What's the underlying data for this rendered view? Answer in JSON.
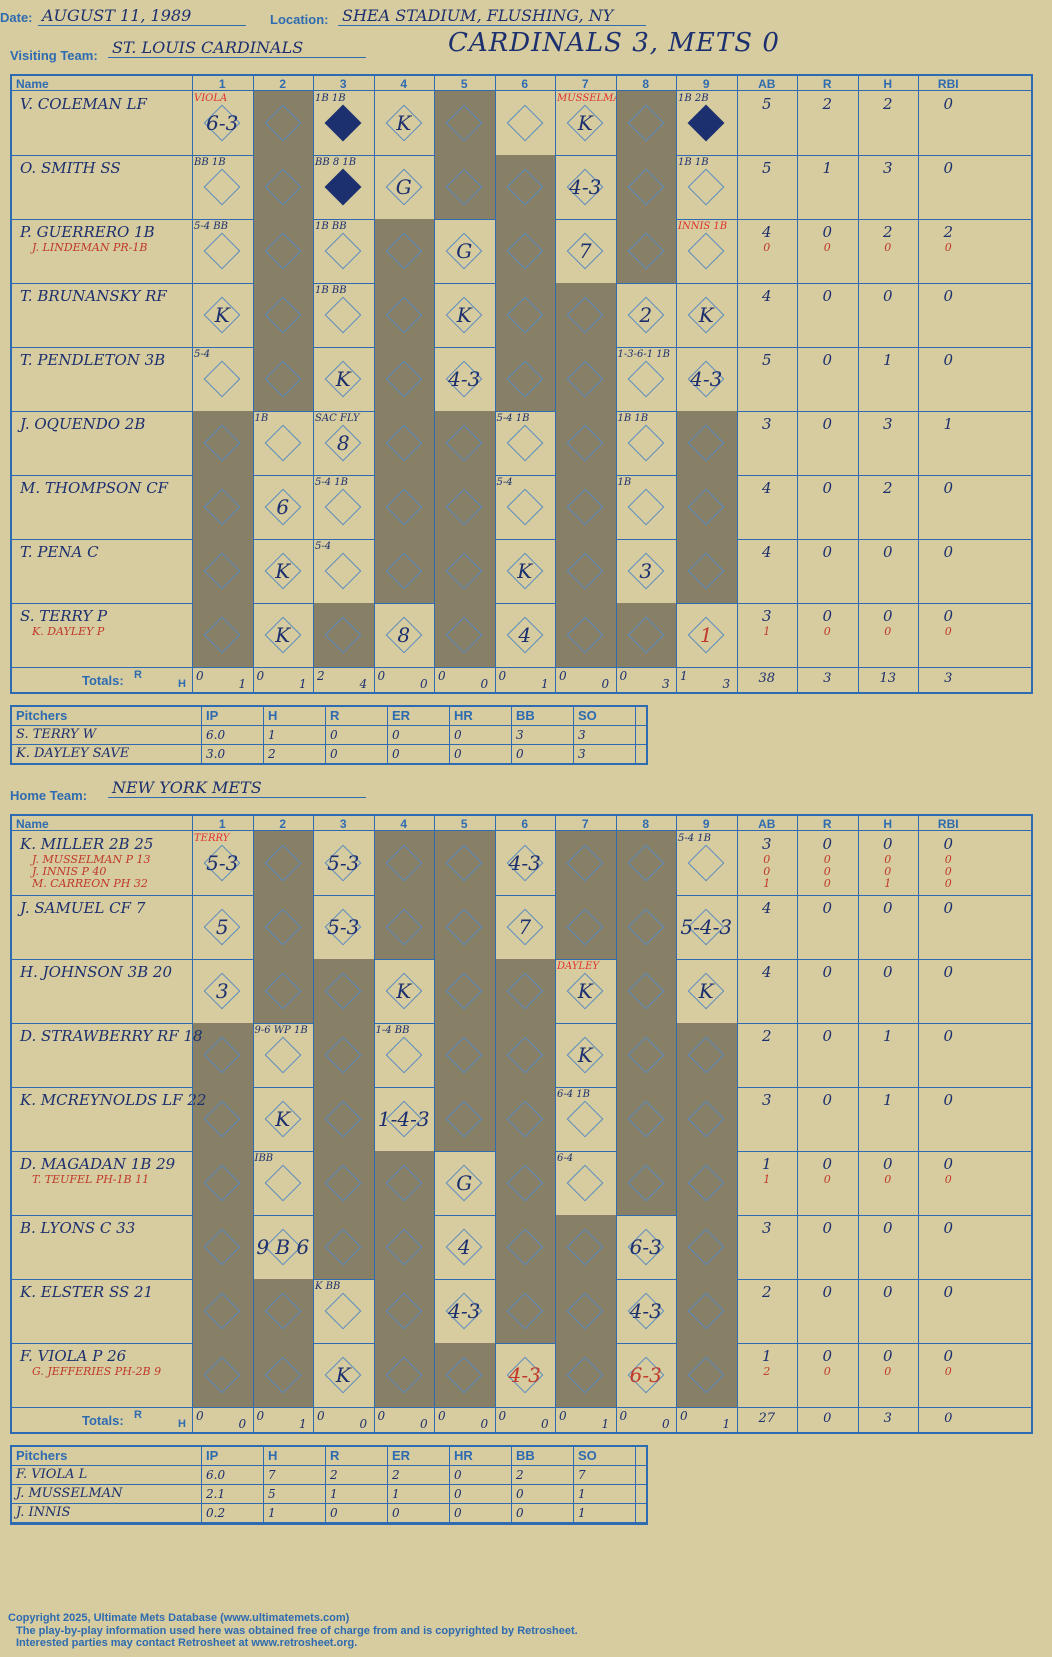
{
  "header": {
    "date_label": "Date:",
    "date": "AUGUST 11, 1989",
    "location_label": "Location:",
    "location": "SHEA STADIUM, FLUSHING, NY",
    "visiting_label": "Visiting Team:",
    "visiting_team": "ST. LOUIS CARDINALS",
    "score_title": "CARDINALS 3, METS 0",
    "home_label": "Home Team:",
    "home_team": "NEW YORK METS"
  },
  "columns": {
    "name": "Name",
    "innings": [
      "1",
      "2",
      "3",
      "4",
      "5",
      "6",
      "7",
      "8",
      "9"
    ],
    "stats": [
      "AB",
      "R",
      "H",
      "RBI"
    ],
    "totals_label": "Totals:",
    "r": "R",
    "h": "H"
  },
  "watermark": "Ultimate Mets Database",
  "visitors": {
    "rows": [
      {
        "name": "V. COLEMAN LF",
        "subs": [],
        "stats": [
          "5",
          "2",
          "2",
          "0"
        ],
        "stats2": [],
        "cells": {
          "1": "6-3",
          "4": "K",
          "7": "K"
        },
        "notes": {
          "1": "VIOLA",
          "7": "MUSSELMAN",
          "3": "1B 1B",
          "9": "1B 2B"
        },
        "filled": [
          "3",
          "9"
        ]
      },
      {
        "name": "O. SMITH SS",
        "subs": [],
        "stats": [
          "5",
          "1",
          "3",
          "0"
        ],
        "stats2": [],
        "cells": {
          "4": "G",
          "7": "4-3"
        },
        "notes": {
          "1": "BB 1B",
          "3": "BB 8 1B",
          "9": "1B 1B"
        },
        "filled": [
          "3"
        ]
      },
      {
        "name": "P. GUERRERO 1B",
        "subs": [
          "J. LINDEMAN PR-1B"
        ],
        "stats": [
          "4",
          "0",
          "2",
          "2"
        ],
        "stats2": [
          "0",
          "0",
          "0",
          "0"
        ],
        "cells": {
          "5": "G",
          "7": "7"
        },
        "notes": {
          "1": "5-4 BB",
          "3": "1B BB",
          "9": "INNIS 1B"
        },
        "filled": []
      },
      {
        "name": "T. BRUNANSKY RF",
        "subs": [],
        "stats": [
          "4",
          "0",
          "0",
          "0"
        ],
        "stats2": [],
        "cells": {
          "1": "K",
          "5": "K",
          "8": "2",
          "9": "K"
        },
        "notes": {
          "3": "1B BB"
        },
        "filled": []
      },
      {
        "name": "T. PENDLETON 3B",
        "subs": [],
        "stats": [
          "5",
          "0",
          "1",
          "0"
        ],
        "stats2": [],
        "cells": {
          "3": "K",
          "5": "4-3",
          "9": "4-3"
        },
        "notes": {
          "1": "5-4",
          "8": "1-3-6-1 1B"
        },
        "filled": []
      },
      {
        "name": "J. OQUENDO 2B",
        "subs": [],
        "stats": [
          "3",
          "0",
          "3",
          "1"
        ],
        "stats2": [],
        "cells": {
          "3": "8"
        },
        "notes": {
          "2": "1B",
          "3": "SAC FLY",
          "6": "5-4 1B",
          "8": "1B 1B"
        },
        "filled": []
      },
      {
        "name": "M. THOMPSON CF",
        "subs": [],
        "stats": [
          "4",
          "0",
          "2",
          "0"
        ],
        "stats2": [],
        "cells": {
          "2": "6"
        },
        "notes": {
          "3": "5-4 1B",
          "6": "5-4",
          "8": "1B"
        },
        "filled": []
      },
      {
        "name": "T. PENA C",
        "subs": [],
        "stats": [
          "4",
          "0",
          "0",
          "0"
        ],
        "stats2": [],
        "cells": {
          "2": "K",
          "6": "K",
          "8": "3"
        },
        "notes": {
          "3": "5-4"
        },
        "filled": []
      },
      {
        "name": "S. TERRY P",
        "subs": [
          "K. DAYLEY P"
        ],
        "stats": [
          "3",
          "0",
          "0",
          "0"
        ],
        "stats2": [
          "1",
          "0",
          "0",
          "0"
        ],
        "cells": {
          "2": "K",
          "4": "8",
          "6": "4"
        },
        "redcells": {
          "9": "1"
        },
        "notes": {},
        "filled": []
      }
    ],
    "shade": [
      [
        2,
        5,
        8
      ],
      [
        2,
        5,
        6,
        8
      ],
      [
        2,
        4,
        6,
        8
      ],
      [
        2,
        4,
        6,
        7
      ],
      [
        2,
        4,
        6,
        7
      ],
      [
        1,
        4,
        5,
        7,
        9
      ],
      [
        1,
        4,
        5,
        7,
        9
      ],
      [
        1,
        4,
        5,
        7,
        9
      ],
      [
        1,
        3,
        5,
        7,
        8
      ]
    ],
    "totals": [
      [
        "0",
        "1"
      ],
      [
        "0",
        "1"
      ],
      [
        "2",
        "4"
      ],
      [
        "0",
        "0"
      ],
      [
        "0",
        "0"
      ],
      [
        "0",
        "1"
      ],
      [
        "0",
        "0"
      ],
      [
        "0",
        "3"
      ],
      [
        "1",
        "3"
      ]
    ],
    "stat_totals": [
      "38",
      "3",
      "13",
      "3"
    ]
  },
  "visitor_pitchers": {
    "head": [
      "Pitchers",
      "IP",
      "H",
      "R",
      "ER",
      "HR",
      "BB",
      "SO"
    ],
    "rows": [
      [
        "S. TERRY  W",
        "6.0",
        "1",
        "0",
        "0",
        "0",
        "3",
        "3"
      ],
      [
        "K. DAYLEY  SAVE",
        "3.0",
        "2",
        "0",
        "0",
        "0",
        "0",
        "3"
      ]
    ]
  },
  "home": {
    "rows": [
      {
        "name": "K. MILLER 2B  25",
        "subs": [
          "J. MUSSELMAN P 13",
          "J. INNIS P 40",
          "M. CARREON PH 32"
        ],
        "stats": [
          "3",
          "0",
          "0",
          "0"
        ],
        "stats2": [
          "0",
          "0",
          "0",
          "0",
          "0",
          "0",
          "0",
          "0",
          "1",
          "0",
          "1",
          "0"
        ],
        "cells": {
          "1": "5-3",
          "3": "5-3",
          "6": "4-3"
        },
        "notes": {
          "1": "TERRY",
          "9": "5-4 1B"
        },
        "filled": []
      },
      {
        "name": "J. SAMUEL CF  7",
        "subs": [],
        "stats": [
          "4",
          "0",
          "0",
          "0"
        ],
        "stats2": [],
        "cells": {
          "1": "5",
          "3": "5-3",
          "6": "7",
          "9": "5-4-3"
        },
        "notes": {},
        "filled": []
      },
      {
        "name": "H. JOHNSON 3B  20",
        "subs": [],
        "stats": [
          "4",
          "0",
          "0",
          "0"
        ],
        "stats2": [],
        "cells": {
          "1": "3",
          "4": "K",
          "7": "K",
          "9": "K"
        },
        "notes": {
          "7": "DAYLEY"
        },
        "filled": []
      },
      {
        "name": "D. STRAWBERRY RF  18",
        "subs": [],
        "stats": [
          "2",
          "0",
          "1",
          "0"
        ],
        "stats2": [],
        "cells": {
          "7": "K"
        },
        "notes": {
          "2": "9-6 WP 1B",
          "4": "1-4 BB"
        },
        "filled": []
      },
      {
        "name": "K. MCREYNOLDS LF  22",
        "subs": [],
        "stats": [
          "3",
          "0",
          "1",
          "0"
        ],
        "stats2": [],
        "cells": {
          "2": "K",
          "4": "1-4-3"
        },
        "notes": {
          "7": "6-4 1B"
        },
        "filled": []
      },
      {
        "name": "D. MAGADAN 1B  29",
        "subs": [
          "T. TEUFEL PH-1B  11"
        ],
        "stats": [
          "1",
          "0",
          "0",
          "0"
        ],
        "stats2": [
          "1",
          "0",
          "0",
          "0"
        ],
        "cells": {
          "5": "G"
        },
        "notes": {
          "2": "IBB",
          "7": "6-4"
        },
        "filled": []
      },
      {
        "name": "B. LYONS C  33",
        "subs": [],
        "stats": [
          "3",
          "0",
          "0",
          "0"
        ],
        "stats2": [],
        "cells": {
          "2": "9 B 6",
          "5": "4",
          "8": "6-3"
        },
        "notes": {},
        "filled": []
      },
      {
        "name": "K. ELSTER SS  21",
        "subs": [],
        "stats": [
          "2",
          "0",
          "0",
          "0"
        ],
        "stats2": [],
        "cells": {
          "5": "4-3",
          "8": "4-3"
        },
        "notes": {
          "3": "K BB"
        },
        "filled": []
      },
      {
        "name": "F. VIOLA P  26",
        "subs": [
          "G. JEFFERIES PH-2B 9"
        ],
        "stats": [
          "1",
          "0",
          "0",
          "0"
        ],
        "stats2": [
          "2",
          "0",
          "0",
          "0"
        ],
        "cells": {
          "3": "K"
        },
        "redcells": {
          "6": "4-3",
          "8": "6-3"
        },
        "notes": {},
        "filled": []
      }
    ],
    "shade": [
      [
        2,
        4,
        5,
        7,
        8
      ],
      [
        2,
        4,
        5,
        7,
        8
      ],
      [
        2,
        3,
        5,
        6,
        8
      ],
      [
        1,
        3,
        5,
        6,
        8,
        9
      ],
      [
        1,
        3,
        5,
        6,
        8,
        9
      ],
      [
        1,
        3,
        4,
        6,
        8,
        9
      ],
      [
        1,
        3,
        4,
        6,
        7,
        9
      ],
      [
        1,
        2,
        4,
        6,
        7,
        9
      ],
      [
        1,
        2,
        4,
        5,
        7,
        9
      ]
    ],
    "totals": [
      [
        "0",
        "0"
      ],
      [
        "0",
        "1"
      ],
      [
        "0",
        "0"
      ],
      [
        "0",
        "0"
      ],
      [
        "0",
        "0"
      ],
      [
        "0",
        "0"
      ],
      [
        "0",
        "1"
      ],
      [
        "0",
        "0"
      ],
      [
        "0",
        "1"
      ]
    ],
    "stat_totals": [
      "27",
      "0",
      "3",
      "0"
    ]
  },
  "home_pitchers": {
    "head": [
      "Pitchers",
      "IP",
      "H",
      "R",
      "ER",
      "HR",
      "BB",
      "SO"
    ],
    "rows": [
      [
        "F. VIOLA  L",
        "6.0",
        "7",
        "2",
        "2",
        "0",
        "2",
        "7"
      ],
      [
        "J. MUSSELMAN",
        "2.1",
        "5",
        "1",
        "1",
        "0",
        "0",
        "1"
      ],
      [
        "J. INNIS",
        "0.2",
        "1",
        "0",
        "0",
        "0",
        "0",
        "1"
      ]
    ]
  },
  "footer": {
    "line1": "Copyright 2025, Ultimate Mets Database (www.ultimatemets.com)",
    "line2": "The play-by-play information used here was obtained free of charge from and is copyrighted by Retrosheet.",
    "line3": "Interested parties may contact Retrosheet at www.retrosheet.org."
  }
}
